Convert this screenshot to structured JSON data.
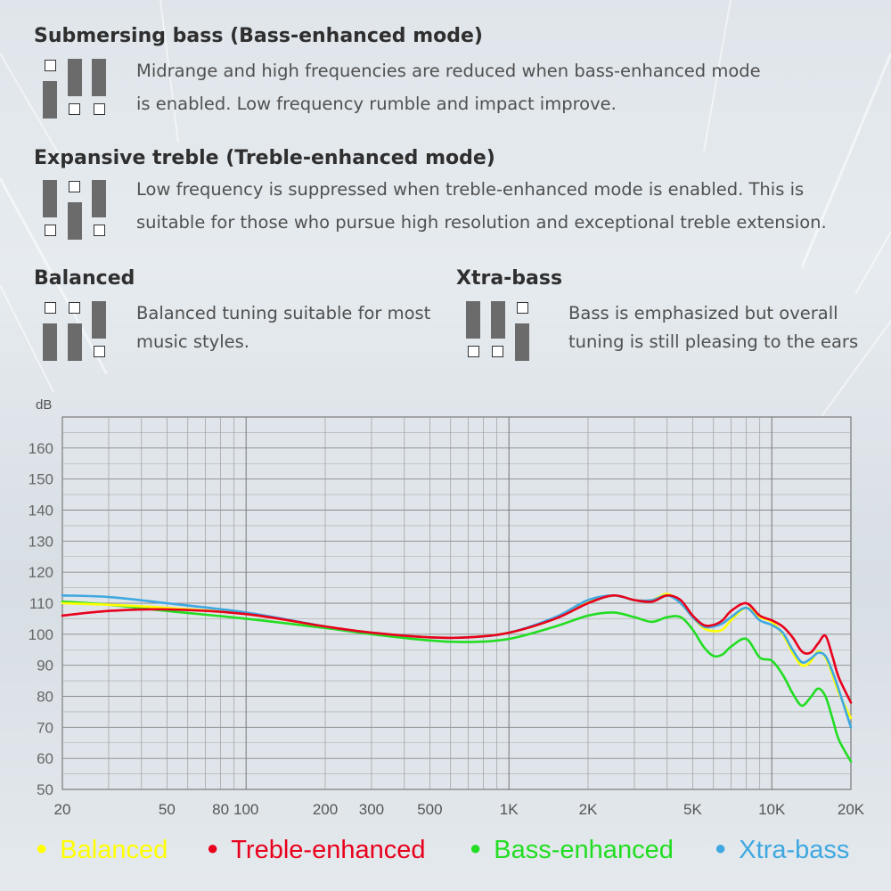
{
  "sections": {
    "bass": {
      "title": "Submersing bass (Bass-enhanced mode)",
      "line1": "Midrange and high frequencies are reduced when bass-enhanced mode",
      "line2": "is enabled. Low frequency rumble and impact improve."
    },
    "treble": {
      "title": "Expansive treble (Treble-enhanced mode)",
      "line1": "Low frequency is suppressed when treble-enhanced mode is enabled. This is",
      "line2": "suitable for those who pursue high resolution and exceptional treble extension."
    },
    "balanced": {
      "title": "Balanced",
      "line1": "Balanced tuning suitable for most",
      "line2": "music styles."
    },
    "xtra": {
      "title": "Xtra-bass",
      "line1": "Bass is emphasized but overall",
      "line2": "tuning is still pleasing to the ears"
    }
  },
  "colors": {
    "Balanced": "#ffff00",
    "Treble-enhanced": "#e8001c",
    "Bass-enhanced": "#22dd22",
    "Xtra-bass": "#3fa8e0"
  },
  "chart_data": {
    "type": "line",
    "xscale": "log",
    "xlim": [
      20,
      20000
    ],
    "ylim": [
      50,
      170
    ],
    "ylabel": "dB",
    "grid": true,
    "legend_position": "bottom",
    "yticks": [
      50,
      60,
      70,
      80,
      90,
      100,
      110,
      120,
      130,
      140,
      150,
      160
    ],
    "xticks": [
      {
        "value": 20,
        "label": "20"
      },
      {
        "value": 50,
        "label": "50"
      },
      {
        "value": 80,
        "label": "80"
      },
      {
        "value": 100,
        "label": "100"
      },
      {
        "value": 200,
        "label": "200"
      },
      {
        "value": 300,
        "label": "300"
      },
      {
        "value": 500,
        "label": "500"
      },
      {
        "value": 1000,
        "label": "1K"
      },
      {
        "value": 2000,
        "label": "2K"
      },
      {
        "value": 5000,
        "label": "5K"
      },
      {
        "value": 10000,
        "label": "10K"
      },
      {
        "value": 20000,
        "label": "20K"
      }
    ],
    "series": [
      {
        "name": "Bass-enhanced",
        "points": [
          [
            20,
            110.5
          ],
          [
            30,
            109.5
          ],
          [
            50,
            107.5
          ],
          [
            100,
            105
          ],
          [
            200,
            102
          ],
          [
            300,
            100
          ],
          [
            500,
            98
          ],
          [
            700,
            97.5
          ],
          [
            1000,
            98.5
          ],
          [
            1500,
            102.5
          ],
          [
            2000,
            106
          ],
          [
            2500,
            107
          ],
          [
            3000,
            105.5
          ],
          [
            3500,
            104
          ],
          [
            4000,
            105.5
          ],
          [
            4500,
            105.5
          ],
          [
            5000,
            101.5
          ],
          [
            5500,
            96
          ],
          [
            6000,
            93
          ],
          [
            6500,
            93.5
          ],
          [
            7000,
            96
          ],
          [
            8000,
            98.5
          ],
          [
            9000,
            92.5
          ],
          [
            10000,
            91.5
          ],
          [
            11000,
            87
          ],
          [
            12000,
            81
          ],
          [
            13000,
            77
          ],
          [
            14000,
            79.5
          ],
          [
            15000,
            82.5
          ],
          [
            16000,
            80
          ],
          [
            17000,
            73
          ],
          [
            18000,
            66
          ],
          [
            20000,
            59
          ]
        ]
      },
      {
        "name": "Balanced",
        "points": [
          [
            20,
            110
          ],
          [
            30,
            109.5
          ],
          [
            50,
            108.5
          ],
          [
            100,
            106.5
          ],
          [
            200,
            102.5
          ],
          [
            300,
            100.5
          ],
          [
            500,
            99
          ],
          [
            700,
            99
          ],
          [
            1000,
            100.5
          ],
          [
            1500,
            105
          ],
          [
            2000,
            110.5
          ],
          [
            2500,
            112.5
          ],
          [
            3000,
            111
          ],
          [
            3500,
            111
          ],
          [
            4000,
            113
          ],
          [
            4500,
            110
          ],
          [
            5000,
            105.5
          ],
          [
            5500,
            102
          ],
          [
            6000,
            101
          ],
          [
            6500,
            101.5
          ],
          [
            7000,
            104.5
          ],
          [
            8000,
            108.5
          ],
          [
            9000,
            105.5
          ],
          [
            10000,
            104
          ],
          [
            11000,
            100
          ],
          [
            12000,
            94
          ],
          [
            13000,
            90
          ],
          [
            14000,
            91
          ],
          [
            15000,
            94.5
          ],
          [
            16000,
            92.5
          ],
          [
            17000,
            87
          ],
          [
            18000,
            81
          ],
          [
            20000,
            73
          ]
        ]
      },
      {
        "name": "Xtra-bass",
        "points": [
          [
            20,
            112.5
          ],
          [
            30,
            112
          ],
          [
            50,
            110
          ],
          [
            100,
            107
          ],
          [
            200,
            102.5
          ],
          [
            300,
            100.5
          ],
          [
            500,
            99
          ],
          [
            700,
            99
          ],
          [
            1000,
            100.5
          ],
          [
            1500,
            105.5
          ],
          [
            2000,
            111
          ],
          [
            2500,
            112.5
          ],
          [
            3000,
            111
          ],
          [
            3500,
            111
          ],
          [
            4000,
            112.5
          ],
          [
            4500,
            110
          ],
          [
            5000,
            105.5
          ],
          [
            5500,
            102.5
          ],
          [
            6000,
            102.5
          ],
          [
            6500,
            103.5
          ],
          [
            7000,
            105.5
          ],
          [
            8000,
            108.5
          ],
          [
            9000,
            104.5
          ],
          [
            10000,
            103
          ],
          [
            11000,
            100.5
          ],
          [
            12000,
            95
          ],
          [
            13000,
            91
          ],
          [
            14000,
            92
          ],
          [
            15000,
            94
          ],
          [
            16000,
            93
          ],
          [
            17000,
            88
          ],
          [
            18000,
            82
          ],
          [
            20000,
            70
          ]
        ]
      },
      {
        "name": "Treble-enhanced",
        "points": [
          [
            20,
            106
          ],
          [
            30,
            107.5
          ],
          [
            50,
            108
          ],
          [
            100,
            106.5
          ],
          [
            200,
            102.5
          ],
          [
            300,
            100.5
          ],
          [
            500,
            99
          ],
          [
            700,
            99
          ],
          [
            1000,
            100.5
          ],
          [
            1500,
            105
          ],
          [
            2000,
            110
          ],
          [
            2500,
            112.5
          ],
          [
            3000,
            111
          ],
          [
            3500,
            110.5
          ],
          [
            4000,
            112.5
          ],
          [
            4500,
            111
          ],
          [
            5000,
            106
          ],
          [
            5500,
            103
          ],
          [
            6000,
            103
          ],
          [
            6500,
            104.5
          ],
          [
            7000,
            107.5
          ],
          [
            8000,
            110
          ],
          [
            9000,
            106
          ],
          [
            10000,
            104.5
          ],
          [
            11000,
            102.5
          ],
          [
            12000,
            99
          ],
          [
            13000,
            94.5
          ],
          [
            14000,
            94
          ],
          [
            15000,
            97
          ],
          [
            16000,
            99.5
          ],
          [
            17000,
            93
          ],
          [
            18000,
            86
          ],
          [
            20000,
            78
          ]
        ]
      }
    ],
    "legend": [
      "Balanced",
      "Treble-enhanced",
      "Bass-enhanced",
      "Xtra-bass"
    ]
  }
}
